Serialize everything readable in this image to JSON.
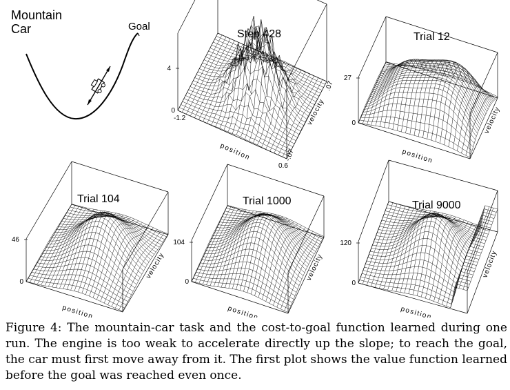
{
  "diagram": {
    "title_line1": "Mountain",
    "title_line2": "Car",
    "goal_label": "Goal"
  },
  "plots": [
    {
      "title": "Step 428",
      "zmax_label": "4",
      "zmin_label": "0",
      "xlabel": "position",
      "ylabel": "velocity",
      "xmin_label": "-1.2",
      "xmax_label": "0.6",
      "ymin_label": "-.07",
      "ymax_label": ".07"
    },
    {
      "title": "Trial 12",
      "zmax_label": "27",
      "zmin_label": "0",
      "xlabel": "position",
      "ylabel": "velocity"
    },
    {
      "title": "Trial 104",
      "zmax_label": "46",
      "zmin_label": "0",
      "xlabel": "position",
      "ylabel": "velocity"
    },
    {
      "title": "Trial 1000",
      "zmax_label": "104",
      "zmin_label": "0",
      "xlabel": "position",
      "ylabel": "velocity"
    },
    {
      "title": "Trial 9000",
      "zmax_label": "120",
      "zmin_label": "0",
      "xlabel": "position",
      "ylabel": "velocity"
    }
  ],
  "caption": {
    "label": "Figure 4:",
    "text": "The mountain-car task and the cost-to-goal function learned during one run. The engine is too weak to accelerate directly up the slope; to reach the goal, the car must first move away from it. The first plot shows the value function learned before the goal was reached even once."
  }
}
